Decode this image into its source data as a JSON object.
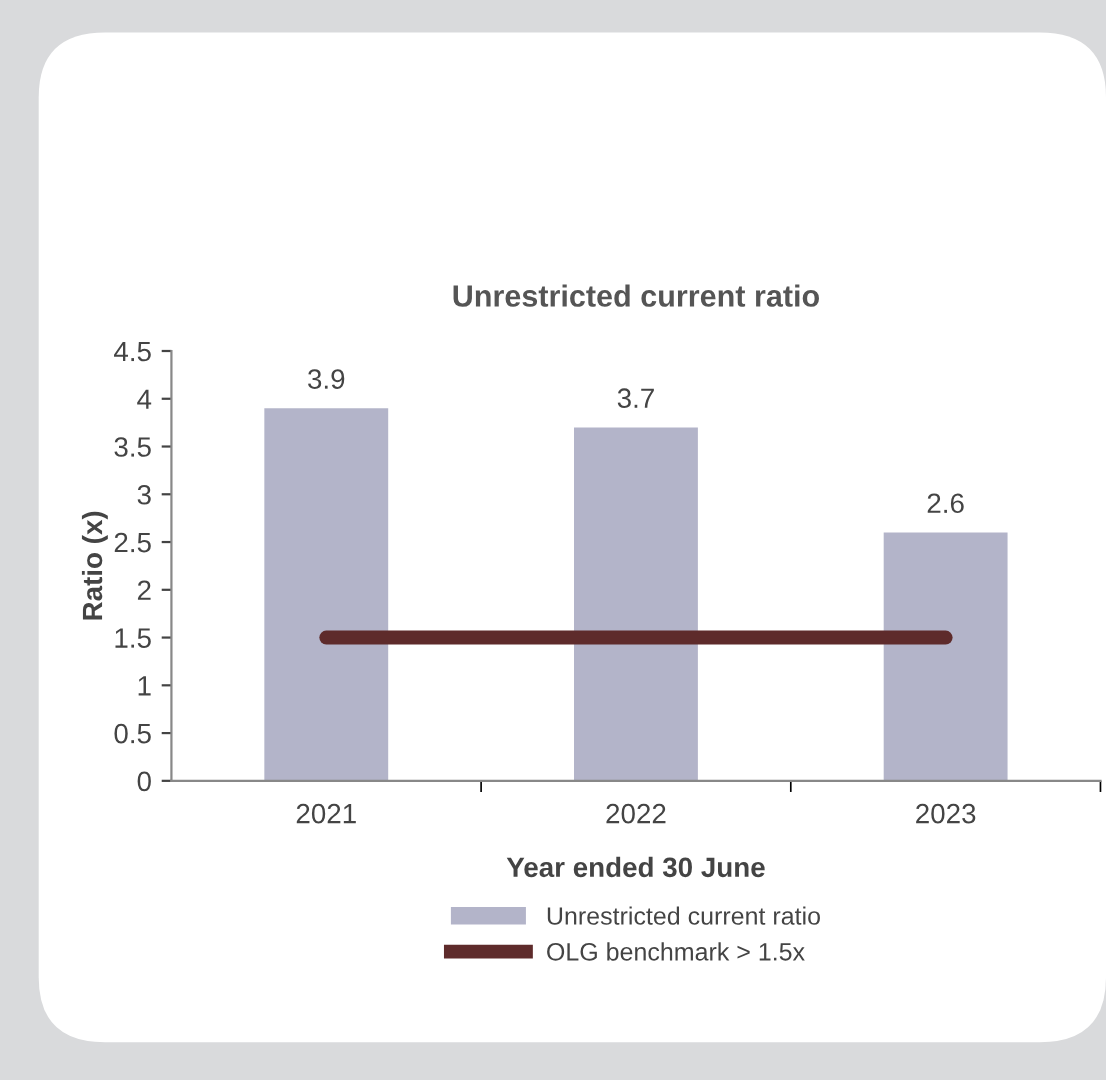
{
  "chart_data": {
    "type": "bar",
    "title": "Unrestricted current ratio",
    "xlabel": "Year ended 30 June",
    "ylabel": "Ratio (x)",
    "categories": [
      "2021",
      "2022",
      "2023"
    ],
    "series": [
      {
        "name": "Unrestricted current ratio",
        "color": "#b3b4c9",
        "values": [
          3.9,
          3.7,
          2.6
        ]
      },
      {
        "name": "OLG benchmark > 1.5x",
        "type": "line",
        "color": "#5e2b2b",
        "values": [
          1.5,
          1.5,
          1.5
        ]
      }
    ],
    "value_labels": [
      "3.9",
      "3.7",
      "2.6"
    ],
    "ylim": [
      0,
      4.5
    ],
    "yticks": [
      0,
      0.5,
      1,
      1.5,
      2,
      2.5,
      3,
      3.5,
      4,
      4.5
    ],
    "grid": false,
    "legend": "bottom",
    "marker": "none",
    "line_style": "solid"
  }
}
